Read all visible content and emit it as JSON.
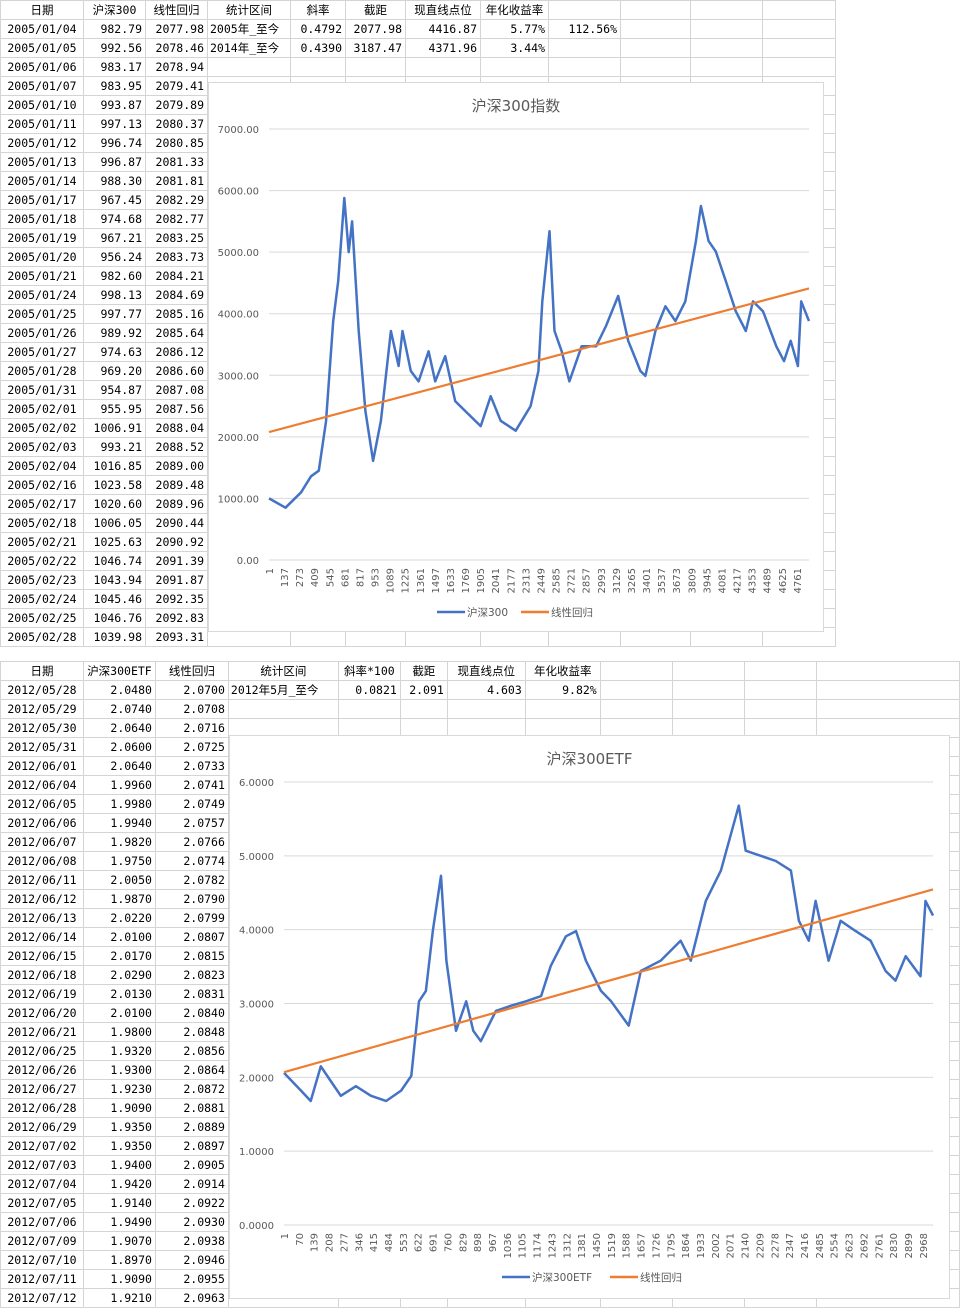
{
  "top_sheet": {
    "headers": [
      "日期",
      "沪深300",
      "线性回归",
      "统计区间",
      "斜率",
      "截距",
      "现直线点位",
      "年化收益率",
      "",
      "",
      "",
      ""
    ],
    "rows": [
      [
        "2005/01/04",
        "982.79",
        "2077.98",
        "2005年_至今",
        "0.4792",
        "2077.98",
        "4416.87",
        "5.77%",
        "112.56%"
      ],
      [
        "2005/01/05",
        "992.56",
        "2078.46",
        "2014年_至今",
        "0.4390",
        "3187.47",
        "4371.96",
        "3.44%"
      ],
      [
        "2005/01/06",
        "983.17",
        "2078.94"
      ],
      [
        "2005/01/07",
        "983.95",
        "2079.41"
      ],
      [
        "2005/01/10",
        "993.87",
        "2079.89"
      ],
      [
        "2005/01/11",
        "997.13",
        "2080.37"
      ],
      [
        "2005/01/12",
        "996.74",
        "2080.85"
      ],
      [
        "2005/01/13",
        "996.87",
        "2081.33"
      ],
      [
        "2005/01/14",
        "988.30",
        "2081.81"
      ],
      [
        "2005/01/17",
        "967.45",
        "2082.29"
      ],
      [
        "2005/01/18",
        "974.68",
        "2082.77"
      ],
      [
        "2005/01/19",
        "967.21",
        "2083.25"
      ],
      [
        "2005/01/20",
        "956.24",
        "2083.73"
      ],
      [
        "2005/01/21",
        "982.60",
        "2084.21"
      ],
      [
        "2005/01/24",
        "998.13",
        "2084.69"
      ],
      [
        "2005/01/25",
        "997.77",
        "2085.16"
      ],
      [
        "2005/01/26",
        "989.92",
        "2085.64"
      ],
      [
        "2005/01/27",
        "974.63",
        "2086.12"
      ],
      [
        "2005/01/28",
        "969.20",
        "2086.60"
      ],
      [
        "2005/01/31",
        "954.87",
        "2087.08"
      ],
      [
        "2005/02/01",
        "955.95",
        "2087.56"
      ],
      [
        "2005/02/02",
        "1006.91",
        "2088.04"
      ],
      [
        "2005/02/03",
        "993.21",
        "2088.52"
      ],
      [
        "2005/02/04",
        "1016.85",
        "2089.00"
      ],
      [
        "2005/02/16",
        "1023.58",
        "2089.48"
      ],
      [
        "2005/02/17",
        "1020.60",
        "2089.96"
      ],
      [
        "2005/02/18",
        "1006.05",
        "2090.44"
      ],
      [
        "2005/02/21",
        "1025.63",
        "2090.92"
      ],
      [
        "2005/02/22",
        "1046.74",
        "2091.39"
      ],
      [
        "2005/02/23",
        "1043.94",
        "2091.87"
      ],
      [
        "2005/02/24",
        "1045.46",
        "2092.35"
      ],
      [
        "2005/02/25",
        "1046.76",
        "2092.83"
      ],
      [
        "2005/02/28",
        "1039.98",
        "2093.31"
      ]
    ]
  },
  "bottom_sheet": {
    "headers": [
      "日期",
      "沪深300ETF",
      "线性回归",
      "统计区间",
      "斜率*100",
      "截距",
      "现直线点位",
      "年化收益率",
      "",
      "",
      "",
      ""
    ],
    "rows": [
      [
        "2012/05/28",
        "2.0480",
        "2.0700",
        "2012年5月_至今",
        "0.0821",
        "2.091",
        "4.603",
        "9.82%"
      ],
      [
        "2012/05/29",
        "2.0740",
        "2.0708"
      ],
      [
        "2012/05/30",
        "2.0640",
        "2.0716"
      ],
      [
        "2012/05/31",
        "2.0600",
        "2.0725"
      ],
      [
        "2012/06/01",
        "2.0640",
        "2.0733"
      ],
      [
        "2012/06/04",
        "1.9960",
        "2.0741"
      ],
      [
        "2012/06/05",
        "1.9980",
        "2.0749"
      ],
      [
        "2012/06/06",
        "1.9940",
        "2.0757"
      ],
      [
        "2012/06/07",
        "1.9820",
        "2.0766"
      ],
      [
        "2012/06/08",
        "1.9750",
        "2.0774"
      ],
      [
        "2012/06/11",
        "2.0050",
        "2.0782"
      ],
      [
        "2012/06/12",
        "1.9870",
        "2.0790"
      ],
      [
        "2012/06/13",
        "2.0220",
        "2.0799"
      ],
      [
        "2012/06/14",
        "2.0100",
        "2.0807"
      ],
      [
        "2012/06/15",
        "2.0170",
        "2.0815"
      ],
      [
        "2012/06/18",
        "2.0290",
        "2.0823"
      ],
      [
        "2012/06/19",
        "2.0130",
        "2.0831"
      ],
      [
        "2012/06/20",
        "2.0100",
        "2.0840"
      ],
      [
        "2012/06/21",
        "1.9800",
        "2.0848"
      ],
      [
        "2012/06/25",
        "1.9320",
        "2.0856"
      ],
      [
        "2012/06/26",
        "1.9300",
        "2.0864"
      ],
      [
        "2012/06/27",
        "1.9230",
        "2.0872"
      ],
      [
        "2012/06/28",
        "1.9090",
        "2.0881"
      ],
      [
        "2012/06/29",
        "1.9350",
        "2.0889"
      ],
      [
        "2012/07/02",
        "1.9350",
        "2.0897"
      ],
      [
        "2012/07/03",
        "1.9400",
        "2.0905"
      ],
      [
        "2012/07/04",
        "1.9420",
        "2.0914"
      ],
      [
        "2012/07/05",
        "1.9140",
        "2.0922"
      ],
      [
        "2012/07/06",
        "1.9490",
        "2.0930"
      ],
      [
        "2012/07/09",
        "1.9070",
        "2.0938"
      ],
      [
        "2012/07/10",
        "1.8970",
        "2.0946"
      ],
      [
        "2012/07/11",
        "1.9090",
        "2.0955"
      ],
      [
        "2012/07/12",
        "1.9210",
        "2.0963"
      ]
    ]
  },
  "chart_data": [
    {
      "type": "line",
      "title": "沪深300指数",
      "xlabel": "",
      "ylabel": "",
      "xlim": [
        1,
        4870
      ],
      "ylim": [
        0,
        7000
      ],
      "y_ticks": [
        "0.00",
        "1000.00",
        "2000.00",
        "3000.00",
        "4000.00",
        "5000.00",
        "6000.00",
        "7000.00"
      ],
      "x_ticks": [
        "1",
        "137",
        "273",
        "409",
        "545",
        "681",
        "817",
        "953",
        "1089",
        "1225",
        "1361",
        "1497",
        "1633",
        "1769",
        "1905",
        "2041",
        "2177",
        "2313",
        "2449",
        "2585",
        "2721",
        "2857",
        "2993",
        "3129",
        "3265",
        "3401",
        "3537",
        "3673",
        "3809",
        "3945",
        "4081",
        "4217",
        "4353",
        "4489",
        "4625",
        "4761"
      ],
      "grid": true,
      "legend": "bottom",
      "series": [
        {
          "name": "沪深300",
          "color": "#4472c4",
          "x": [
            1,
            150,
            290,
            380,
            450,
            515,
            580,
            625,
            680,
            720,
            750,
            810,
            870,
            940,
            1010,
            1100,
            1170,
            1205,
            1280,
            1350,
            1440,
            1500,
            1590,
            1680,
            1770,
            1910,
            2000,
            2090,
            2225,
            2360,
            2430,
            2465,
            2530,
            2575,
            2640,
            2710,
            2820,
            2950,
            3040,
            3150,
            3240,
            3350,
            3395,
            3485,
            3575,
            3665,
            3755,
            3850,
            3895,
            3965,
            4030,
            4120,
            4210,
            4300,
            4365,
            4455,
            4575,
            4645,
            4705,
            4770,
            4800,
            4870
          ],
          "y": [
            1000,
            850,
            1100,
            1360,
            1450,
            2250,
            3880,
            4530,
            5880,
            5000,
            5500,
            3720,
            2420,
            1610,
            2260,
            3720,
            3150,
            3720,
            3070,
            2900,
            3390,
            2900,
            3310,
            2580,
            2420,
            2175,
            2660,
            2260,
            2100,
            2500,
            3070,
            4200,
            5340,
            3720,
            3390,
            2900,
            3470,
            3470,
            3800,
            4290,
            3560,
            3070,
            2990,
            3720,
            4120,
            3880,
            4200,
            5180,
            5750,
            5180,
            5010,
            4530,
            4040,
            3720,
            4200,
            4040,
            3470,
            3230,
            3560,
            3150,
            4200,
            3880
          ]
        },
        {
          "name": "线性回归",
          "color": "#ed7d31",
          "x": [
            1,
            4870
          ],
          "y": [
            2077.98,
            4411.9
          ]
        }
      ]
    },
    {
      "type": "line",
      "title": "沪深300ETF",
      "xlabel": "",
      "ylabel": "",
      "xlim": [
        1,
        3015
      ],
      "ylim": [
        0,
        6
      ],
      "y_ticks": [
        "0.0000",
        "1.0000",
        "2.0000",
        "3.0000",
        "4.0000",
        "5.0000",
        "6.0000"
      ],
      "x_ticks": [
        "1",
        "70",
        "139",
        "208",
        "277",
        "346",
        "415",
        "484",
        "553",
        "622",
        "691",
        "760",
        "829",
        "898",
        "967",
        "1036",
        "1105",
        "1174",
        "1243",
        "1312",
        "1381",
        "1450",
        "1519",
        "1588",
        "1657",
        "1726",
        "1795",
        "1864",
        "1933",
        "2002",
        "2071",
        "2140",
        "2209",
        "2278",
        "2347",
        "2416",
        "2485",
        "2554",
        "2623",
        "2692",
        "2761",
        "2830",
        "2899",
        "2968"
      ],
      "grid": true,
      "legend": "bottom",
      "series": [
        {
          "name": "沪深300ETF",
          "color": "#4472c4",
          "x": [
            1,
            80,
            125,
            172,
            218,
            265,
            335,
            405,
            475,
            545,
            592,
            628,
            660,
            692,
            730,
            755,
            800,
            847,
            880,
            915,
            985,
            1055,
            1125,
            1195,
            1240,
            1310,
            1357,
            1403,
            1473,
            1520,
            1602,
            1658,
            1750,
            1843,
            1890,
            1960,
            2030,
            2113,
            2145,
            2215,
            2285,
            2355,
            2392,
            2438,
            2470,
            2530,
            2586,
            2656,
            2725,
            2795,
            2841,
            2888,
            2957,
            2980,
            3015
          ],
          "y": [
            2.06,
            1.82,
            1.68,
            2.15,
            1.95,
            1.75,
            1.88,
            1.75,
            1.68,
            1.82,
            2.02,
            3.03,
            3.17,
            3.98,
            4.73,
            3.58,
            2.63,
            3.03,
            2.63,
            2.49,
            2.9,
            2.97,
            3.03,
            3.1,
            3.51,
            3.91,
            3.98,
            3.58,
            3.17,
            3.03,
            2.7,
            3.44,
            3.58,
            3.85,
            3.58,
            4.39,
            4.8,
            5.68,
            5.07,
            5.0,
            4.93,
            4.8,
            4.12,
            3.85,
            4.39,
            3.58,
            4.12,
            3.98,
            3.85,
            3.44,
            3.31,
            3.64,
            3.37,
            4.39,
            4.19
          ]
        },
        {
          "name": "线性回归",
          "color": "#ed7d31",
          "x": [
            1,
            3015
          ],
          "y": [
            2.07,
            4.545
          ]
        }
      ]
    }
  ]
}
